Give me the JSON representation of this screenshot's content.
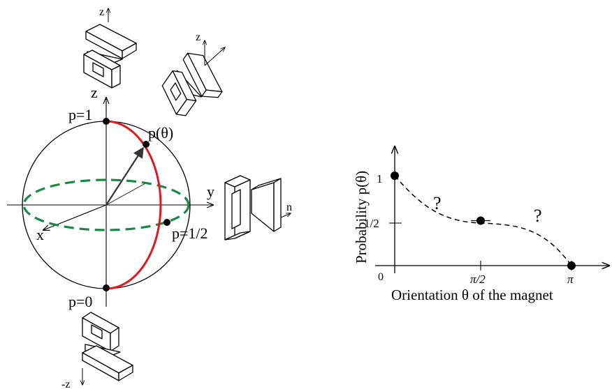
{
  "bloch": {
    "axis_z": "z",
    "axis_y": "y",
    "axis_x": "x",
    "p_top": "p=1",
    "p_theta": "p(θ)",
    "p_half": "p=1/2",
    "p_bottom": "p=0",
    "magnet_top_dir": "z",
    "magnet_tilt_dir": "z",
    "magnet_side_dir": "n",
    "magnet_bottom_dir": "-z",
    "colors": {
      "meridian": "#e0191f",
      "equator": "#1a8a43",
      "outline": "#000000"
    }
  },
  "graph": {
    "ylabel": "Probability p(θ)",
    "xlabel": "Orientation θ of the magnet",
    "y_ticks": [
      "1",
      "1/2"
    ],
    "x_ticks": [
      "0",
      "π/2",
      "π"
    ],
    "unknown_marks": [
      "?",
      "?"
    ]
  },
  "chart_data": {
    "type": "scatter",
    "x": [
      "0",
      "π/2",
      "π"
    ],
    "y": [
      1,
      0.5,
      0
    ],
    "ylabel": "Probability p(θ)",
    "xlabel": "Orientation θ of the magnet",
    "dashed_interpolation": true
  }
}
